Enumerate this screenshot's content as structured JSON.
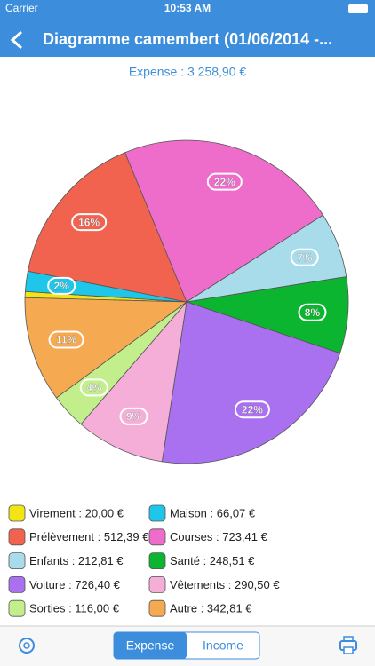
{
  "status_bar": {
    "carrier": "Carrier",
    "time": "10:53 AM"
  },
  "nav_bar": {
    "title": "Diagramme camembert (01/06/2014 -..."
  },
  "chart_data": {
    "type": "pie",
    "subtitle": "Expense : 3 258,90 €",
    "categories": [
      "Virement : 20,00 €",
      "Maison : 66,07 €",
      "Prélèvement : 512,39 €",
      "Courses : 723,41 €",
      "Enfants : 212,81 €",
      "Santé : 248,51 €",
      "Voiture : 726,40 €",
      "Vêtements : 290,50 €",
      "Sorties : 116,00 €",
      "Autre : 342,81 €"
    ],
    "values": [
      0.61,
      2.03,
      15.72,
      22.2,
      6.53,
      7.63,
      22.29,
      8.91,
      3.56,
      10.52
    ],
    "value_labels": [
      null,
      "2%",
      "16%",
      "22%",
      "7%",
      "8%",
      "22%",
      "9%",
      "4%",
      "11%"
    ],
    "colors": [
      "#f3e514",
      "#1ec6ea",
      "#f2634f",
      "#ee6cca",
      "#a9dcea",
      "#0bb52f",
      "#a970f0",
      "#f4aed7",
      "#c2ef8c",
      "#f5aa52"
    ]
  },
  "toolbar": {
    "tabs": [
      "Expense",
      "Income"
    ]
  }
}
